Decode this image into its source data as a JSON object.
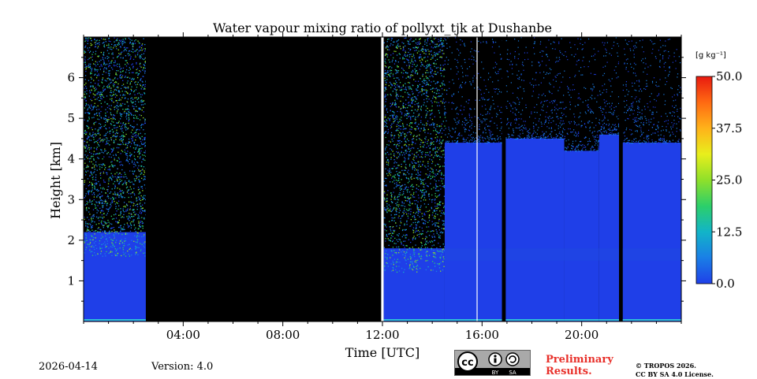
{
  "chart_data": {
    "type": "heatmap",
    "title": "Water vapour mixing ratio of pollyxt_tjk at Dushanbe",
    "xlabel": "Time [UTC]",
    "ylabel": "Height [km]",
    "x_unit": "hours UTC",
    "xlim": [
      0,
      24
    ],
    "ylim": [
      0,
      7
    ],
    "x_ticks": [
      4,
      8,
      12,
      16,
      20
    ],
    "x_tick_labels": [
      "04:00",
      "08:00",
      "12:00",
      "16:00",
      "20:00"
    ],
    "y_ticks": [
      1,
      2,
      3,
      4,
      5,
      6
    ],
    "y_tick_labels": [
      "1",
      "2",
      "3",
      "4",
      "5",
      "6"
    ],
    "colorbar": {
      "unit_label": "[g kg⁻¹]",
      "range": [
        0,
        50
      ],
      "ticks": [
        0.0,
        12.5,
        25.0,
        37.5,
        50.0
      ],
      "tick_labels": [
        "0.0",
        "12.5",
        "25.0",
        "37.5",
        "50.0"
      ],
      "colormap": [
        "#1f3fe8",
        "#1a7fe6",
        "#12b4c8",
        "#2ccf6a",
        "#8fe02a",
        "#e8ee1c",
        "#ffb21a",
        "#ff6a12",
        "#e81a10"
      ]
    },
    "no_data_color": "#000000",
    "regions": [
      {
        "t_start": 0.0,
        "t_end": 2.5,
        "desc": "noisy",
        "bg_top_km": 2.2,
        "noise_to_km": 7.0,
        "typical_gkg": 4
      },
      {
        "t_start": 2.5,
        "t_end": 11.95,
        "desc": "no_data"
      },
      {
        "t_start": 11.95,
        "t_end": 12.05,
        "desc": "gap_white"
      },
      {
        "t_start": 12.05,
        "t_end": 14.5,
        "desc": "noisy",
        "bg_top_km": 1.8,
        "noise_to_km": 7.0,
        "typical_gkg": 4
      },
      {
        "t_start": 14.5,
        "t_end": 16.8,
        "desc": "valid",
        "valid_top_km": 4.4,
        "typical_gkg": 3
      },
      {
        "t_start": 16.8,
        "t_end": 16.95,
        "desc": "no_data"
      },
      {
        "t_start": 16.95,
        "t_end": 19.3,
        "desc": "valid",
        "valid_top_km": 4.5,
        "typical_gkg": 3
      },
      {
        "t_start": 19.3,
        "t_end": 20.7,
        "desc": "valid",
        "valid_top_km": 4.2,
        "typical_gkg": 3
      },
      {
        "t_start": 20.7,
        "t_end": 21.5,
        "desc": "valid",
        "valid_top_km": 4.6,
        "typical_gkg": 3
      },
      {
        "t_start": 21.5,
        "t_end": 21.65,
        "desc": "no_data"
      },
      {
        "t_start": 21.65,
        "t_end": 24.0,
        "desc": "valid",
        "valid_top_km": 4.4,
        "typical_gkg": 3
      }
    ],
    "white_gaps_h": [
      11.98,
      15.8
    ]
  },
  "footer": {
    "date": "2026-04-14",
    "version": "Version: 4.0",
    "preliminary_line1": "Preliminary",
    "preliminary_line2": "Results.",
    "copyright_line1": "© TROPOS 2026.",
    "copyright_line2": "CC BY SA 4.0 License.",
    "license_badge": {
      "cc": "cc",
      "by": "BY",
      "sa": "SA"
    }
  }
}
